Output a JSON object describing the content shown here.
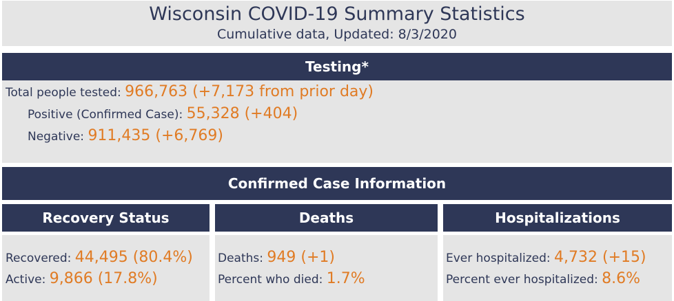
{
  "header": {
    "title": "Wisconsin COVID-19 Summary Statistics",
    "subtitle": "Cumulative data, Updated: 8/3/2020"
  },
  "testing": {
    "heading": "Testing*",
    "total": {
      "label": "Total people tested: ",
      "value": "966,763 (+7,173 from prior day)"
    },
    "positive": {
      "label": "Positive (Confirmed Case): ",
      "value": "55,328 (+404)"
    },
    "negative": {
      "label": "Negative: ",
      "value": "911,435 (+6,769)"
    }
  },
  "confirmed": {
    "heading": "Confirmed Case Information"
  },
  "recovery": {
    "heading": "Recovery Status",
    "recovered": {
      "label": "Recovered: ",
      "value": "44,495 (80.4%)"
    },
    "active": {
      "label": "Active: ",
      "value": "9,866 (17.8%)"
    }
  },
  "deaths": {
    "heading": "Deaths",
    "deaths": {
      "label": "Deaths: ",
      "value": "949 (+1)"
    },
    "percent": {
      "label": "Percent who died: ",
      "value": "1.7%"
    }
  },
  "hosp": {
    "heading": "Hospitalizations",
    "ever": {
      "label": "Ever hospitalized: ",
      "value": "4,732 (+15)"
    },
    "percent": {
      "label": "Percent ever hospitalized: ",
      "value": "8.6%"
    }
  },
  "colors": {
    "navy": "#2e3757",
    "orange": "#e07b24",
    "panel": "#e5e5e5"
  }
}
